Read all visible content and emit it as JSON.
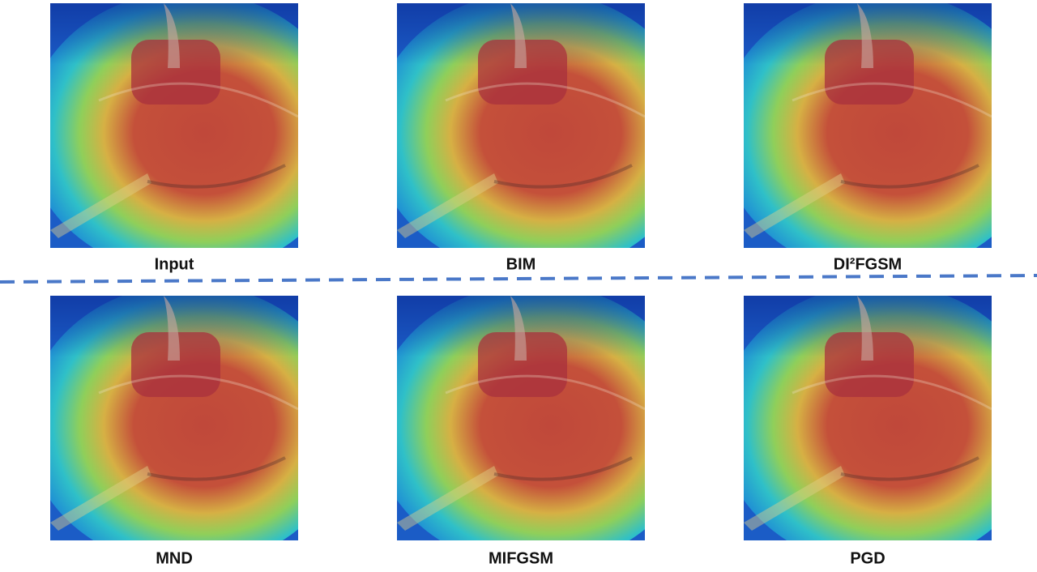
{
  "panels": [
    {
      "label": "Input"
    },
    {
      "label": "BIM"
    },
    {
      "label": "DI²FGSM"
    },
    {
      "label": "MND"
    },
    {
      "label": "MIFGSM"
    },
    {
      "label": "PGD"
    }
  ]
}
